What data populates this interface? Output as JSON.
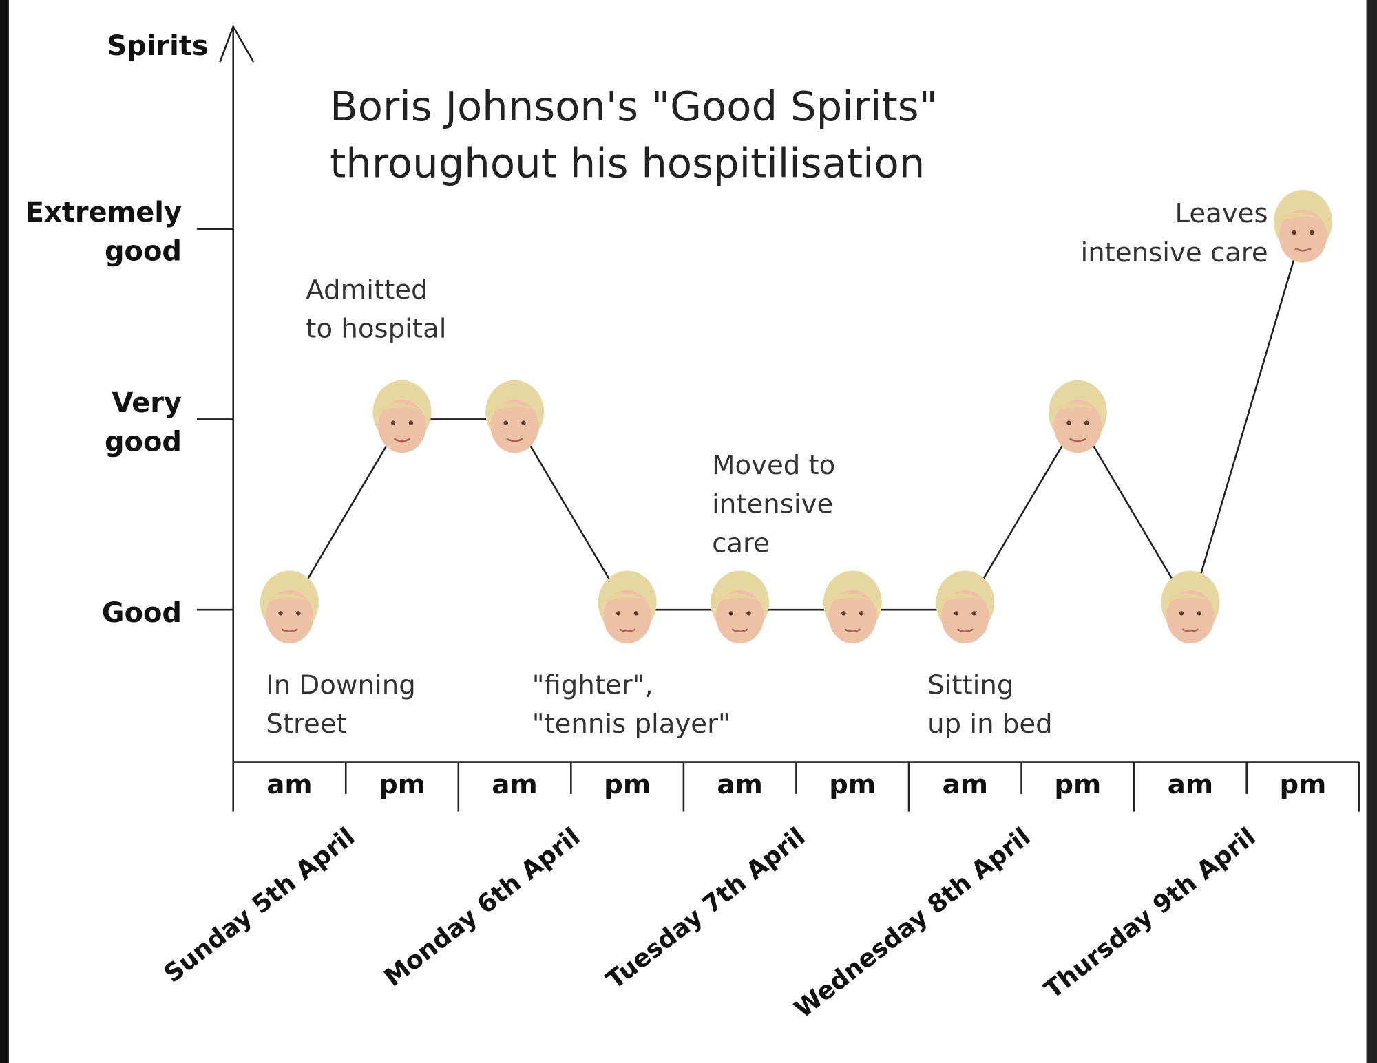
{
  "chart_data": {
    "type": "line",
    "title": "Boris Johnson's \"Good Spirits\"\nthroughout his hospitilisation",
    "y_label": "Spirits",
    "categories": [
      "am",
      "pm",
      "am",
      "pm",
      "am",
      "pm",
      "am",
      "pm",
      "am",
      "pm"
    ],
    "groups": [
      "Sunday 5th April",
      "Monday 6th April",
      "Tuesday 7th April",
      "Wednesday 8th April",
      "Thursday 9th April"
    ],
    "values": [
      1,
      2,
      2,
      1,
      1,
      1,
      1,
      2,
      1,
      3
    ],
    "ylim": [
      0.2,
      4.1
    ],
    "yticks": [
      {
        "value": 1,
        "label": "Good"
      },
      {
        "value": 2,
        "label": "Very\ngood"
      },
      {
        "value": 3,
        "label": "Extremely\ngood"
      }
    ],
    "annotations": [
      "In Downing\nStreet",
      "Admitted\nto hospital",
      "\"fighter\",\n\"tennis player\"",
      "Moved to\nintensive\ncare",
      "Sitting\nup in bed",
      "Leaves\nintensive care"
    ]
  }
}
